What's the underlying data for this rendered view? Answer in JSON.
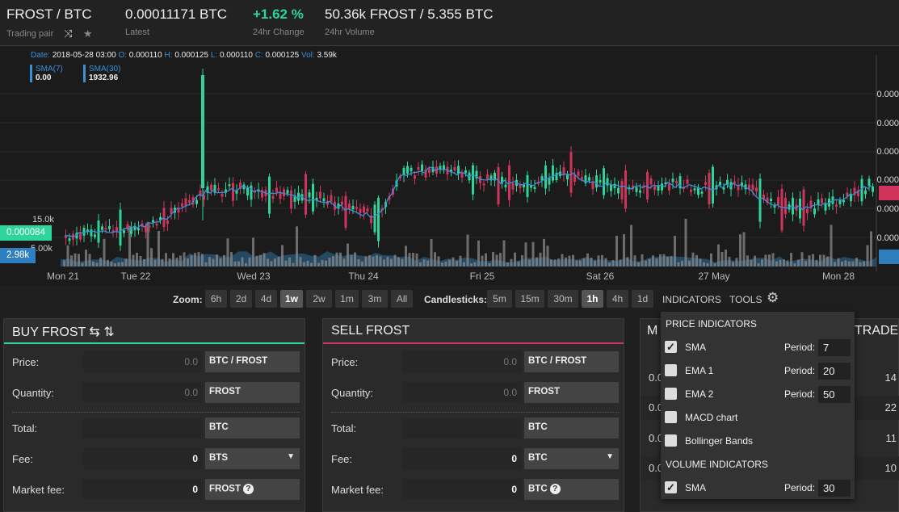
{
  "header": {
    "pair": "FROST / BTC",
    "pair_label": "Trading pair",
    "latest": "0.00011171 BTC",
    "latest_label": "Latest",
    "change": "+1.62 %",
    "change_label": "24hr Change",
    "volume": "50.36k FROST / 5.355 BTC",
    "volume_label": "24hr Volume"
  },
  "ohlc": {
    "date_key": "Date:",
    "date": "2018-05-28 03:00",
    "o_key": "O:",
    "o": "0.000110",
    "h_key": "H:",
    "h": "0.000125",
    "l_key": "L:",
    "l": "0.000110",
    "c_key": "C:",
    "c": "0.000125",
    "vol_key": "Vol:",
    "vol": "3.59k"
  },
  "sma_short": {
    "name": "SMA(7)",
    "value": "0.00"
  },
  "sma_long": {
    "name": "SMA(30)",
    "value": "1932.96"
  },
  "flags": {
    "price": "0.000084",
    "volume": "2.98k",
    "vol_axis": "15.0k",
    "vol_axis2": "5.00k"
  },
  "y_labels": [
    "0.000",
    "0.000",
    "0.000",
    "0.000",
    "0.000",
    "0.000"
  ],
  "x_labels": [
    "Mon 21",
    "Tue 22",
    "Wed 23",
    "Thu 24",
    "Fri 25",
    "Sat 26",
    "27 May",
    "Mon 28"
  ],
  "colors": {
    "up": "#2ed59a",
    "down": "#d0345d",
    "sma": "#3a8fd9",
    "accent_buy": "#2ed5a8",
    "accent_sell": "#d0345d"
  },
  "toolbar": {
    "zoom_label": "Zoom:",
    "zoom": [
      "6h",
      "2d",
      "4d",
      "1w",
      "2w",
      "1m",
      "3m",
      "All"
    ],
    "zoom_active": "1w",
    "candle_label": "Candlesticks:",
    "candles": [
      "5m",
      "15m",
      "30m",
      "1h",
      "4h",
      "1d"
    ],
    "candle_active": "1h",
    "indicators": "INDICATORS",
    "tools": "TOOLS"
  },
  "buy": {
    "title": "BUY FROST ⇆ ⇅",
    "price_label": "Price:",
    "price_placeholder": "0.0",
    "price_unit": "BTC / FROST",
    "qty_label": "Quantity:",
    "qty_placeholder": "0.0",
    "qty_unit": "FROST",
    "total_label": "Total:",
    "total_unit": "BTC",
    "fee_label": "Fee:",
    "fee_value": "0",
    "fee_unit": "BTS",
    "mfee_label": "Market fee:",
    "mfee_value": "0",
    "mfee_unit": "FROST"
  },
  "sell": {
    "title": "SELL FROST",
    "price_label": "Price:",
    "price_placeholder": "0.0",
    "price_unit": "BTC / FROST",
    "qty_label": "Quantity:",
    "qty_placeholder": "0.0",
    "qty_unit": "FROST",
    "total_label": "Total:",
    "total_unit": "BTC",
    "fee_label": "Fee:",
    "fee_value": "0",
    "fee_unit": "BTC",
    "mfee_label": "Market fee:",
    "mfee_value": "0",
    "mfee_unit": "BTC"
  },
  "market": {
    "title": "M",
    "trades_title": "TRADES",
    "rows": [
      {
        "a": "0.0",
        "b": "14"
      },
      {
        "a": "0.0",
        "b": "22"
      },
      {
        "a": "0.0",
        "b": "11"
      },
      {
        "a": "0.0",
        "b": "10"
      }
    ]
  },
  "indicators": {
    "price_head": "PRICE INDICATORS",
    "volume_head": "VOLUME INDICATORS",
    "period_label": "Period:",
    "price_items": [
      {
        "name": "SMA",
        "checked": true,
        "period": "7"
      },
      {
        "name": "EMA 1",
        "checked": false,
        "period": "20"
      },
      {
        "name": "EMA 2",
        "checked": false,
        "period": "50"
      },
      {
        "name": "MACD chart",
        "checked": false
      },
      {
        "name": "Bollinger Bands",
        "checked": false
      }
    ],
    "volume_items": [
      {
        "name": "SMA",
        "checked": true,
        "period": "30"
      }
    ]
  }
}
